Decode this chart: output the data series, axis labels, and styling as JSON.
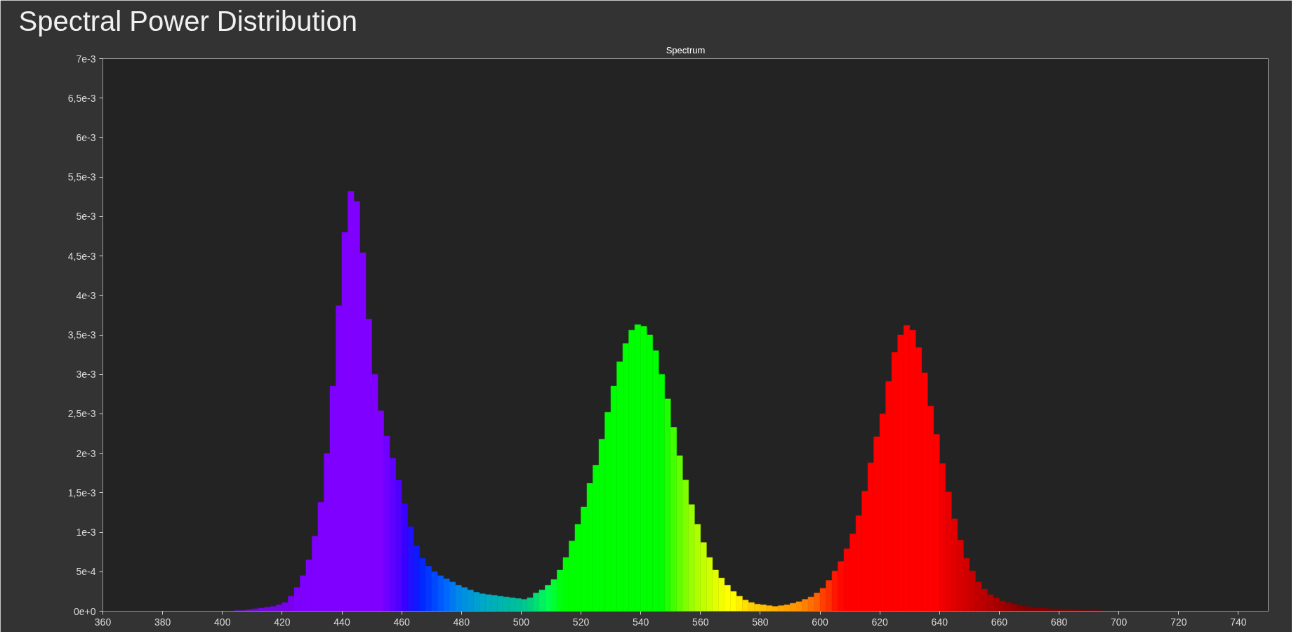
{
  "chart_data": {
    "type": "histogram",
    "title": "Spectral Power Distribution",
    "subtitle": "Spectrum",
    "bins": [
      400,
      402,
      404,
      406,
      408,
      410,
      412,
      414,
      416,
      418,
      420,
      422,
      424,
      426,
      428,
      430,
      432,
      434,
      436,
      438,
      440,
      442,
      444,
      446,
      448,
      450,
      452,
      454,
      456,
      458,
      460,
      462,
      464,
      466,
      468,
      470,
      472,
      474,
      476,
      478,
      480,
      482,
      484,
      486,
      488,
      490,
      492,
      494,
      496,
      498,
      500,
      502,
      504,
      506,
      508,
      510,
      512,
      514,
      516,
      518,
      520,
      522,
      524,
      526,
      528,
      530,
      532,
      534,
      536,
      538,
      540,
      542,
      544,
      546,
      548,
      550,
      552,
      554,
      556,
      558,
      560,
      562,
      564,
      566,
      568,
      570,
      572,
      574,
      576,
      578,
      580,
      582,
      584,
      586,
      588,
      590,
      592,
      594,
      596,
      598,
      600,
      602,
      604,
      606,
      608,
      610,
      612,
      614,
      616,
      618,
      620,
      622,
      624,
      626,
      628,
      630,
      632,
      634,
      636,
      638,
      640,
      642,
      644,
      646,
      648,
      650,
      652,
      654,
      656,
      658,
      660,
      662,
      664,
      666,
      668,
      670,
      672,
      674,
      676,
      678,
      680,
      682,
      684,
      686,
      688,
      690,
      692,
      694,
      696,
      698,
      700
    ],
    "values": [
      0,
      0,
      1e-05,
      1e-05,
      2e-05,
      3e-05,
      4e-05,
      5e-05,
      6e-05,
      8e-05,
      0.00011,
      0.00019,
      0.0003,
      0.00045,
      0.00065,
      0.00095,
      0.00138,
      0.002,
      0.00285,
      0.00387,
      0.0048,
      0.00532,
      0.00519,
      0.00454,
      0.0037,
      0.003,
      0.00254,
      0.00222,
      0.00194,
      0.00166,
      0.00136,
      0.00107,
      0.00083,
      0.00067,
      0.00057,
      0.0005,
      0.00045,
      0.00041,
      0.00037,
      0.00033,
      0.0003,
      0.00027,
      0.00024,
      0.00022,
      0.00021,
      0.0002,
      0.00019,
      0.00018,
      0.00017,
      0.00016,
      0.00015,
      0.00017,
      0.00023,
      0.00027,
      0.00033,
      0.0004,
      0.00052,
      0.00068,
      0.00089,
      0.0011,
      0.00132,
      0.00162,
      0.00185,
      0.00218,
      0.00252,
      0.00285,
      0.00316,
      0.00339,
      0.00356,
      0.00363,
      0.00361,
      0.0035,
      0.0033,
      0.003,
      0.00269,
      0.00233,
      0.00197,
      0.00166,
      0.00135,
      0.0011,
      0.00087,
      0.00068,
      0.00052,
      0.00042,
      0.00033,
      0.00025,
      0.00019,
      0.00014,
      0.00011,
      9e-05,
      8e-05,
      7e-05,
      6e-05,
      7e-05,
      8e-05,
      0.0001,
      0.00012,
      0.00015,
      0.00018,
      0.00023,
      0.00029,
      0.00039,
      0.00051,
      0.00063,
      0.00079,
      0.00098,
      0.00121,
      0.00152,
      0.00188,
      0.00221,
      0.0025,
      0.00291,
      0.00328,
      0.0035,
      0.00362,
      0.00356,
      0.00334,
      0.00302,
      0.0026,
      0.00224,
      0.00187,
      0.00151,
      0.00117,
      0.0009,
      0.00067,
      0.00051,
      0.00037,
      0.00028,
      0.00021,
      0.00017,
      0.00013,
      0.00011,
      9e-05,
      7e-05,
      6e-05,
      5e-05,
      4e-05,
      4e-05,
      3e-05,
      3e-05,
      2e-05,
      2e-05,
      2e-05,
      1e-05,
      1e-05,
      1e-05,
      1e-05,
      0,
      0,
      0
    ],
    "colors": [
      "#6a14c0",
      "#6a14c0",
      "#6a14c0",
      "#6a14c0",
      "#6a14c0",
      "#7308e0",
      "#7308e0",
      "#7308e0",
      "#7308e0",
      "#7308e0",
      "#7a00f0",
      "#7a00f0",
      "#7f00ff",
      "#7f00ff",
      "#7f00ff",
      "#7f00ff",
      "#7f00ff",
      "#7f00ff",
      "#7f00ff",
      "#7f00ff",
      "#8000ff",
      "#8000ff",
      "#8000ff",
      "#8000ff",
      "#8000ff",
      "#8000ff",
      "#8000ff",
      "#7000ff",
      "#6000ff",
      "#5000ff",
      "#3a00ff",
      "#2010ff",
      "#1018ff",
      "#0028ff",
      "#0038ff",
      "#0048ff",
      "#0058ff",
      "#0068ff",
      "#0078f0",
      "#0088e8",
      "#0090e0",
      "#0098d8",
      "#00a0d0",
      "#00a8c8",
      "#00acc0",
      "#00b0b8",
      "#00b4b0",
      "#00b8a8",
      "#00bca0",
      "#00c098",
      "#00c890",
      "#00d080",
      "#00e070",
      "#00f060",
      "#00ff50",
      "#00ff30",
      "#00ff10",
      "#00ff00",
      "#00ff00",
      "#00ff00",
      "#00ff00",
      "#00ff00",
      "#00ff00",
      "#00ff00",
      "#00ff00",
      "#00ff00",
      "#00ff00",
      "#00ff00",
      "#00ff00",
      "#00ff00",
      "#00ff00",
      "#00ff00",
      "#00ff00",
      "#00ff00",
      "#20ff00",
      "#40ff00",
      "#60ff00",
      "#80ff00",
      "#98ff00",
      "#b0ff00",
      "#c0ff00",
      "#d0ff00",
      "#e0ff00",
      "#f0ff00",
      "#ffff00",
      "#ffff00",
      "#fff000",
      "#ffe000",
      "#ffd000",
      "#ffc800",
      "#ffc000",
      "#ffb800",
      "#ffb000",
      "#ffa800",
      "#ffa000",
      "#ff9800",
      "#ff9000",
      "#ff8000",
      "#ff7000",
      "#ff6000",
      "#ff4000",
      "#ff3000",
      "#ff1800",
      "#ff0800",
      "#ff0000",
      "#ff0000",
      "#ff0000",
      "#ff0000",
      "#ff0000",
      "#ff0000",
      "#ff0000",
      "#ff0000",
      "#ff0000",
      "#ff0000",
      "#ff0000",
      "#ff0000",
      "#ff0000",
      "#ff0000",
      "#ff0000",
      "#ff0000",
      "#f00000",
      "#e80000",
      "#e00000",
      "#d80000",
      "#d00000",
      "#c80000",
      "#c00000",
      "#b80000",
      "#b00000",
      "#a80000",
      "#a00000",
      "#980000",
      "#900000",
      "#880000",
      "#800000",
      "#800000",
      "#800000",
      "#800000",
      "#800000",
      "#800000",
      "#800000",
      "#800000",
      "#800000",
      "#800000",
      "#800000",
      "#800000",
      "#800000",
      "#800000",
      "#800000",
      "#800000"
    ],
    "xlim": [
      360,
      750
    ],
    "xticks": [
      360,
      380,
      400,
      420,
      440,
      460,
      480,
      500,
      520,
      540,
      560,
      580,
      600,
      620,
      640,
      660,
      680,
      700,
      720,
      740
    ],
    "ylim": [
      0,
      0.007
    ],
    "yticks": [
      {
        "value": 0,
        "label": "0e+0"
      },
      {
        "value": 0.0005,
        "label": "5e-4"
      },
      {
        "value": 0.001,
        "label": "1e-3"
      },
      {
        "value": 0.0015,
        "label": "1,5e-3"
      },
      {
        "value": 0.002,
        "label": "2e-3"
      },
      {
        "value": 0.0025,
        "label": "2,5e-3"
      },
      {
        "value": 0.003,
        "label": "3e-3"
      },
      {
        "value": 0.0035,
        "label": "3,5e-3"
      },
      {
        "value": 0.004,
        "label": "4e-3"
      },
      {
        "value": 0.0045,
        "label": "4,5e-3"
      },
      {
        "value": 0.005,
        "label": "5e-3"
      },
      {
        "value": 0.0055,
        "label": "5,5e-3"
      },
      {
        "value": 0.006,
        "label": "6e-3"
      },
      {
        "value": 0.0065,
        "label": "6,5e-3"
      },
      {
        "value": 0.007,
        "label": "7e-3"
      }
    ]
  }
}
